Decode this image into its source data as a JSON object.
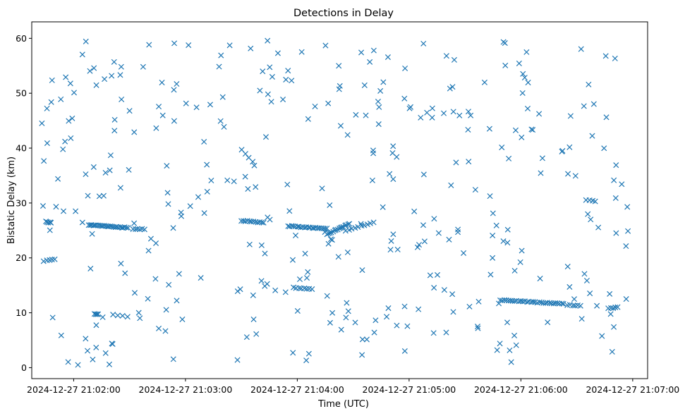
{
  "chart_data": {
    "type": "scatter",
    "title": "Detections in Delay",
    "xlabel": "Time (UTC)",
    "ylabel": "Bistatic Delay (km)",
    "x_unit": "seconds after 2024-12-27 21:02:00 UTC",
    "xlim": [
      -22.5,
      308
    ],
    "ylim": [
      -2,
      63
    ],
    "x_ticks": [
      {
        "value": 0,
        "label": "2024-12-27 21:02:00"
      },
      {
        "value": 60,
        "label": "2024-12-27 21:03:00"
      },
      {
        "value": 120,
        "label": "2024-12-27 21:04:00"
      },
      {
        "value": 180,
        "label": "2024-12-27 21:05:00"
      },
      {
        "value": 240,
        "label": "2024-12-27 21:06:00"
      },
      {
        "value": 300,
        "label": "2024-12-27 21:07:00"
      }
    ],
    "y_ticks": [
      {
        "value": 0,
        "label": "0"
      },
      {
        "value": 10,
        "label": "10"
      },
      {
        "value": 20,
        "label": "20"
      },
      {
        "value": 30,
        "label": "30"
      },
      {
        "value": 40,
        "label": "40"
      },
      {
        "value": 50,
        "label": "50"
      },
      {
        "value": 60,
        "label": "60"
      }
    ],
    "marker": "x",
    "color": "#1f77b4",
    "grid": false,
    "legend": "none",
    "tracks": [
      {
        "t_start": -15,
        "t_end": -12,
        "y_start": 26.6,
        "y_end": 26.4,
        "count": 5
      },
      {
        "t_start": 8,
        "t_end": 29,
        "y_start": 26.0,
        "y_end": 25.5,
        "count": 26
      },
      {
        "t_start": 32,
        "t_end": 38,
        "y_start": 25.3,
        "y_end": 25.2,
        "count": 6
      },
      {
        "t_start": 90,
        "t_end": 102,
        "y_start": 26.8,
        "y_end": 26.4,
        "count": 12
      },
      {
        "t_start": 115,
        "t_end": 136,
        "y_start": 25.8,
        "y_end": 25.3,
        "count": 22
      },
      {
        "t_start": 136,
        "t_end": 148,
        "y_start": 24.3,
        "y_end": 26.2,
        "count": 16
      },
      {
        "t_start": 146,
        "t_end": 161,
        "y_start": 25.0,
        "y_end": 26.5,
        "count": 10
      },
      {
        "t_start": 118,
        "t_end": 128,
        "y_start": 14.6,
        "y_end": 14.3,
        "count": 8
      },
      {
        "t_start": 229,
        "t_end": 263,
        "y_start": 12.3,
        "y_end": 11.6,
        "count": 32
      },
      {
        "t_start": 265,
        "t_end": 272,
        "y_start": 11.4,
        "y_end": 11.3,
        "count": 6
      },
      {
        "t_start": 287,
        "t_end": 292,
        "y_start": 10.8,
        "y_end": 11.0,
        "count": 5
      },
      {
        "t_start": 275,
        "t_end": 280,
        "y_start": 30.6,
        "y_end": 30.3,
        "count": 4
      },
      {
        "t_start": -10,
        "t_end": -16,
        "y_start": 19.7,
        "y_end": 19.4,
        "count": 5
      },
      {
        "t_start": 11,
        "t_end": 13,
        "y_start": 9.8,
        "y_end": 9.7,
        "count": 4
      },
      {
        "t_start": 21,
        "t_end": 29,
        "y_start": 9.6,
        "y_end": 9.3,
        "count": 4
      },
      {
        "t_start": 90,
        "t_end": 96,
        "y_start": 39.7,
        "y_end": 37.5,
        "count": 4
      }
    ],
    "scatter_points": {
      "count": 360,
      "x_range": [
        -18,
        298
      ],
      "y_range": [
        0.5,
        60
      ],
      "seed": 20241227
    }
  }
}
